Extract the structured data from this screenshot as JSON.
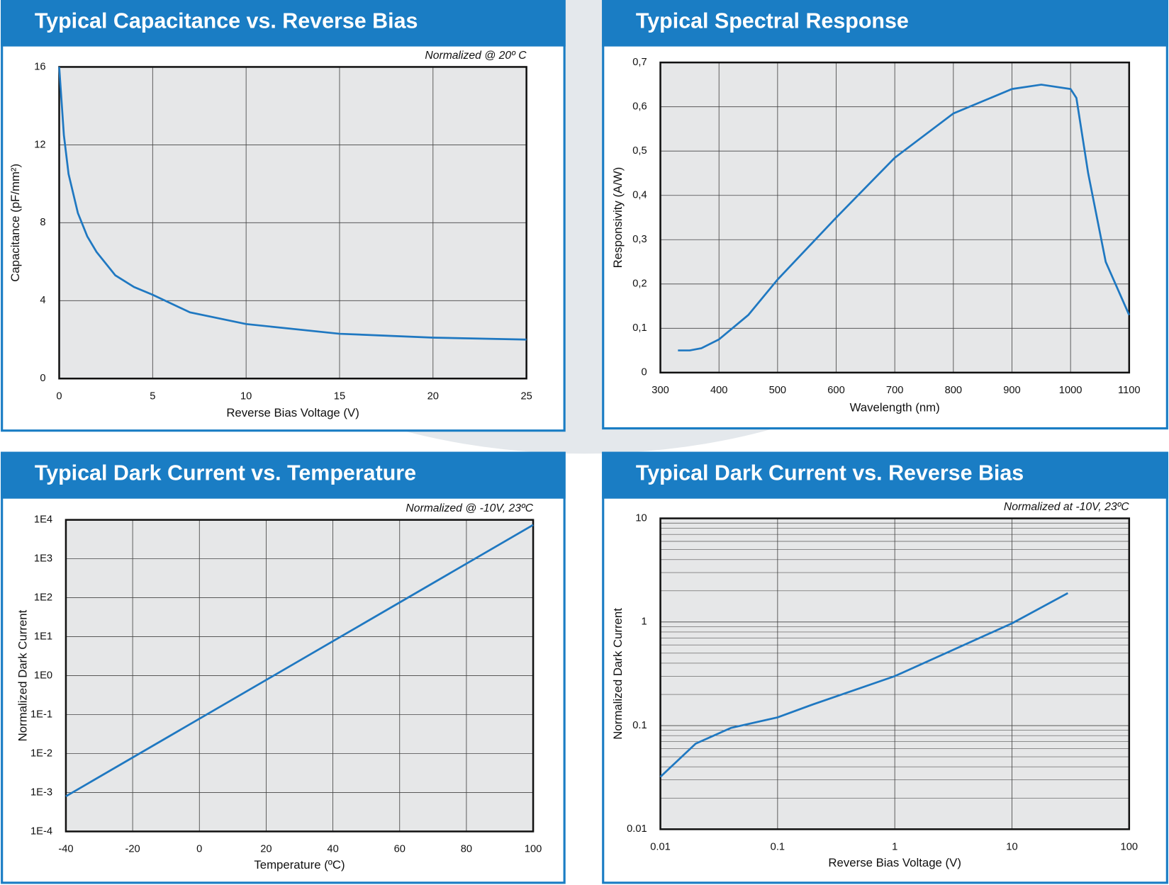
{
  "chart_data": [
    {
      "type": "line",
      "title": "Typical Capacitance vs. Reverse Bias",
      "annotation": "Normalized @ 20º C",
      "xlabel": "Reverse Bias Voltage (V)",
      "ylabel": "Capacitance (pF/mm²)",
      "x": [
        0,
        0.25,
        0.5,
        1,
        1.5,
        2,
        3,
        4,
        5,
        7,
        10,
        15,
        20,
        25
      ],
      "values": [
        16,
        12.5,
        10.5,
        8.5,
        7.3,
        6.5,
        5.3,
        4.7,
        4.3,
        3.4,
        2.8,
        2.3,
        2.1,
        2.0
      ],
      "color": "#1f78c1",
      "xlim": [
        0,
        25
      ],
      "xticks": [
        0,
        5,
        10,
        15,
        20,
        25
      ],
      "ylim": [
        0,
        16
      ],
      "yticks": [
        0,
        4,
        8,
        12,
        16
      ],
      "grid": true
    },
    {
      "type": "line",
      "title": "Typical Spectral Response",
      "xlabel": "Wavelength (nm)",
      "ylabel": "Responsivity (A/W)",
      "x": [
        330,
        350,
        370,
        400,
        450,
        500,
        600,
        700,
        800,
        900,
        950,
        1000,
        1010,
        1030,
        1060,
        1100
      ],
      "values": [
        0.05,
        0.05,
        0.055,
        0.075,
        0.13,
        0.21,
        0.35,
        0.485,
        0.585,
        0.64,
        0.65,
        0.64,
        0.62,
        0.45,
        0.25,
        0.13
      ],
      "color": "#1f78c1",
      "xlim": [
        300,
        1100
      ],
      "xticks": [
        300,
        400,
        500,
        600,
        700,
        800,
        900,
        1000,
        1100
      ],
      "ylim": [
        0,
        0.7
      ],
      "yticks": [
        0,
        {
          "value": 0.1,
          "label": "0,1"
        },
        {
          "value": 0.2,
          "label": "0,2"
        },
        {
          "value": 0.3,
          "label": "0,3"
        },
        {
          "value": 0.4,
          "label": "0,4"
        },
        {
          "value": 0.5,
          "label": "0,5"
        },
        {
          "value": 0.6,
          "label": "0,6"
        },
        {
          "value": 0.7,
          "label": "0,7"
        }
      ],
      "grid": true
    },
    {
      "type": "line",
      "title": "Typical Dark Current vs. Temperature",
      "annotation": "Normalized @ -10V, 23ºC",
      "xlabel": "Temperature (ºC)",
      "ylabel": "Normalized Dark Current",
      "x": [
        -40,
        100
      ],
      "values": [
        0.0008,
        7400
      ],
      "color": "#1f78c1",
      "xlim": [
        -40,
        100
      ],
      "xticks": [
        -40,
        -20,
        0,
        20,
        40,
        60,
        80,
        100
      ],
      "ylim": [
        0.0001,
        10000
      ],
      "ylog": true,
      "yticks": [
        {
          "value": 0.0001,
          "label": "1E-4"
        },
        {
          "value": 0.001,
          "label": "1E-3"
        },
        {
          "value": 0.01,
          "label": "1E-2"
        },
        {
          "value": 0.1,
          "label": "1E-1"
        },
        {
          "value": 1,
          "label": "1E0"
        },
        {
          "value": 10,
          "label": "1E1"
        },
        {
          "value": 100,
          "label": "1E2"
        },
        {
          "value": 1000,
          "label": "1E3"
        },
        {
          "value": 10000,
          "label": "1E4"
        }
      ],
      "grid": true
    },
    {
      "type": "line",
      "title": "Typical Dark Current vs. Reverse Bias",
      "annotation": "Normalized at -10V, 23ºC",
      "xlabel": "Reverse Bias Voltage (V)",
      "ylabel": "Normalized Dark Current",
      "x": [
        0.01,
        0.02,
        0.04,
        0.1,
        0.2,
        1,
        10,
        30
      ],
      "values": [
        0.032,
        0.067,
        0.095,
        0.12,
        0.16,
        0.3,
        0.97,
        1.9
      ],
      "color": "#1f78c1",
      "xlim": [
        0.01,
        100
      ],
      "xlog": true,
      "xticks": [
        0.01,
        0.1,
        1,
        10,
        100
      ],
      "ylim": [
        0.01,
        10
      ],
      "ylog": true,
      "yticks": [
        0.01,
        0.1,
        1,
        10
      ],
      "grid": true,
      "y_minor_grid": true
    }
  ]
}
